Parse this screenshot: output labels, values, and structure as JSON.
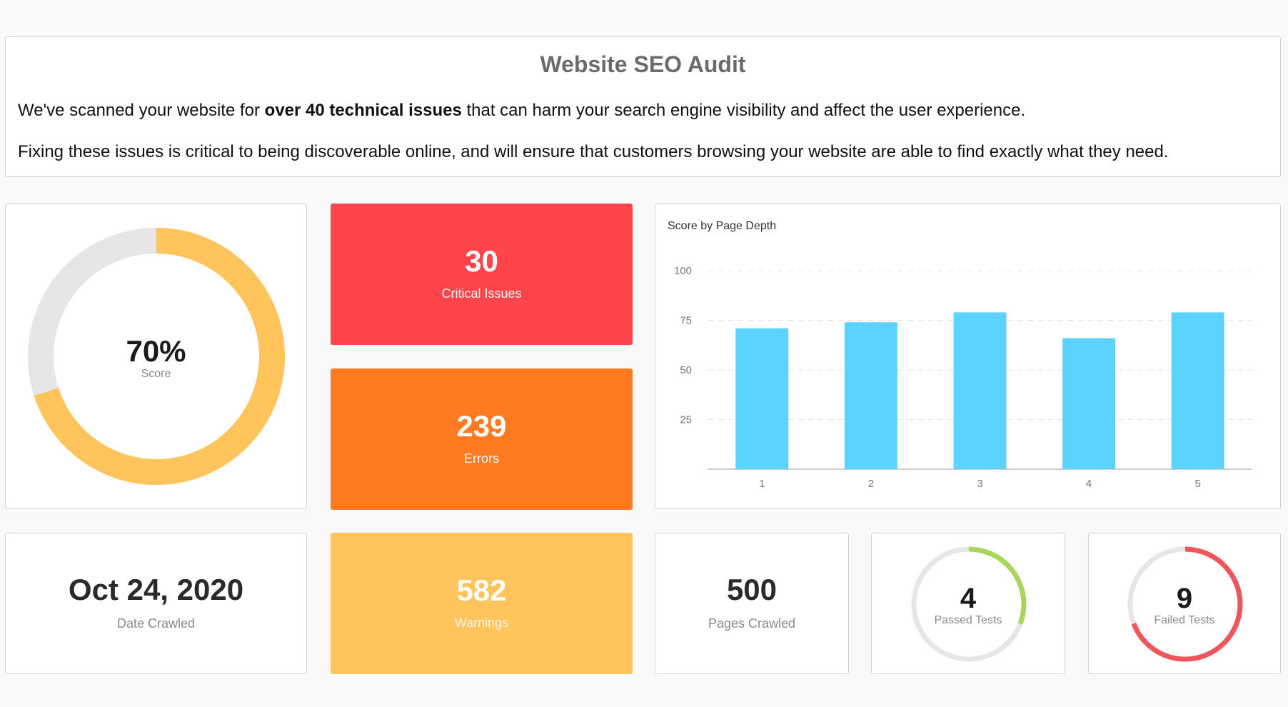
{
  "header": {
    "title": "Website SEO Audit",
    "line1_pre": "We've scanned your website for ",
    "line1_bold": "over 40 technical issues",
    "line1_post": " that can harm your search engine visibility and affect the user experience.",
    "line2": "Fixing these issues is critical to being discoverable online, and will ensure that customers browsing your website are able to find exactly what they need."
  },
  "score": {
    "value": "70%",
    "label": "Score",
    "fraction": 0.7,
    "color": "#ffc45c",
    "track": "#e6e6e6"
  },
  "critical": {
    "value": "30",
    "label": "Critical Issues",
    "color": "#ff444c"
  },
  "errors": {
    "value": "239",
    "label": "Errors",
    "color": "#ff7a21"
  },
  "warnings": {
    "value": "582",
    "label": "Warnings",
    "color": "#ffc45c"
  },
  "date": {
    "value": "Oct 24, 2020",
    "label": "Date Crawled"
  },
  "pages": {
    "value": "500",
    "label": "Pages Crawled"
  },
  "passed": {
    "value": "4",
    "label": "Passed Tests",
    "fraction": 0.3077,
    "color": "#a8d65a"
  },
  "failed": {
    "value": "9",
    "label": "Failed Tests",
    "fraction": 0.6923,
    "color": "#f0555c"
  },
  "chart_data": {
    "type": "bar",
    "title": "Score by Page Depth",
    "xlabel": "",
    "ylabel": "",
    "categories": [
      "1",
      "2",
      "3",
      "4",
      "5"
    ],
    "values": [
      71,
      74,
      79,
      66,
      79
    ],
    "yticks": [
      "100",
      "75",
      "50",
      "25"
    ],
    "ylim": [
      0,
      100
    ],
    "grid": true,
    "bar_color": "#5cd3ff"
  }
}
